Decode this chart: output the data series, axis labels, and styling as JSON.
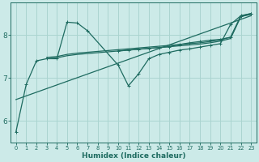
{
  "xlabel": "Humidex (Indice chaleur)",
  "bg_color": "#cceae8",
  "grid_color": "#aad4d0",
  "line_color": "#1e6b60",
  "xlim": [
    -0.5,
    23.5
  ],
  "ylim": [
    5.5,
    8.75
  ],
  "yticks": [
    6,
    7,
    8
  ],
  "xticks": [
    0,
    1,
    2,
    3,
    4,
    5,
    6,
    7,
    8,
    9,
    10,
    11,
    12,
    13,
    14,
    15,
    16,
    17,
    18,
    19,
    20,
    21,
    22,
    23
  ],
  "series": [
    {
      "x": [
        0,
        1,
        2,
        3,
        4,
        5,
        6,
        7,
        10,
        11,
        12,
        13,
        14,
        15,
        16,
        17,
        18,
        19,
        20,
        21,
        22,
        23
      ],
      "y": [
        5.75,
        6.85,
        7.4,
        7.45,
        7.45,
        8.3,
        8.28,
        8.1,
        7.3,
        6.82,
        7.1,
        7.45,
        7.55,
        7.6,
        7.65,
        7.68,
        7.72,
        7.76,
        7.8,
        8.25,
        8.45,
        8.5
      ],
      "marker": "+"
    },
    {
      "x": [
        0,
        23
      ],
      "y": [
        6.5,
        8.45
      ],
      "marker": null
    },
    {
      "x": [
        3,
        4,
        5,
        6,
        7,
        8,
        9,
        10,
        11,
        12,
        13,
        14,
        15,
        16,
        17,
        18,
        19,
        20,
        21,
        22,
        23
      ],
      "y": [
        7.45,
        7.47,
        7.52,
        7.55,
        7.57,
        7.59,
        7.61,
        7.63,
        7.65,
        7.67,
        7.69,
        7.71,
        7.73,
        7.75,
        7.77,
        7.79,
        7.82,
        7.86,
        7.92,
        8.43,
        8.48
      ],
      "marker": null
    },
    {
      "x": [
        3,
        4,
        5,
        6,
        7,
        8,
        9,
        10,
        11,
        12,
        13,
        14,
        15,
        16,
        17,
        18,
        19,
        20,
        21,
        22,
        23
      ],
      "y": [
        7.48,
        7.5,
        7.55,
        7.58,
        7.6,
        7.62,
        7.64,
        7.66,
        7.68,
        7.7,
        7.72,
        7.74,
        7.76,
        7.78,
        7.8,
        7.82,
        7.85,
        7.89,
        7.95,
        8.45,
        8.5
      ],
      "marker": null
    },
    {
      "x": [
        10,
        11,
        12,
        13,
        14,
        15,
        16,
        17,
        18,
        19,
        20,
        21,
        22,
        23
      ],
      "y": [
        7.63,
        7.65,
        7.67,
        7.69,
        7.71,
        7.73,
        7.78,
        7.82,
        7.85,
        7.88,
        7.9,
        7.95,
        8.44,
        8.49
      ],
      "marker": "+"
    }
  ]
}
